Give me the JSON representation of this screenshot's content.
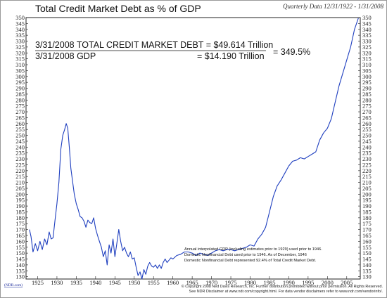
{
  "chart_data": {
    "type": "line",
    "title": "Total Credit Market Debt as % of GDP",
    "date_range": "Quarterly Data 12/31/1922 - 1/31/2008",
    "xlabel": "",
    "ylabel": "",
    "xlim": [
      1922,
      2008.5
    ],
    "ylim": [
      128,
      350
    ],
    "y_ticks": [
      130,
      135,
      140,
      145,
      150,
      155,
      160,
      165,
      170,
      175,
      180,
      185,
      190,
      195,
      200,
      205,
      210,
      215,
      220,
      225,
      230,
      235,
      240,
      245,
      250,
      255,
      260,
      265,
      270,
      275,
      280,
      285,
      290,
      295,
      300,
      305,
      310,
      315,
      320,
      325,
      330,
      335,
      340,
      345,
      350
    ],
    "x_ticks": [
      1925,
      1930,
      1935,
      1940,
      1945,
      1950,
      1955,
      1960,
      1965,
      1970,
      1975,
      1980,
      1985,
      1990,
      1995,
      2000,
      2005
    ],
    "x_tick_labels": [
      "1925",
      "1930",
      "1935",
      "1940",
      "1945",
      "1950",
      "1955",
      "1960",
      "1965",
      "1970",
      "1975",
      "1980",
      "1985",
      "1990",
      "1995",
      "2000",
      "2005"
    ],
    "grid": false,
    "legend": "none",
    "series": [
      {
        "color": "#1f3fbf",
        "points": [
          [
            1922.9,
            170
          ],
          [
            1923.3,
            164
          ],
          [
            1923.8,
            151
          ],
          [
            1924.4,
            158
          ],
          [
            1925.0,
            152
          ],
          [
            1925.6,
            160
          ],
          [
            1926.2,
            153
          ],
          [
            1926.8,
            162
          ],
          [
            1927.4,
            157
          ],
          [
            1928.0,
            168
          ],
          [
            1928.5,
            162
          ],
          [
            1929.0,
            163
          ],
          [
            1929.5,
            178
          ],
          [
            1930.0,
            192
          ],
          [
            1930.5,
            210
          ],
          [
            1931.0,
            238
          ],
          [
            1931.5,
            250
          ],
          [
            1932.0,
            255
          ],
          [
            1932.4,
            260
          ],
          [
            1932.8,
            256
          ],
          [
            1933.2,
            240
          ],
          [
            1933.6,
            222
          ],
          [
            1934.0,
            212
          ],
          [
            1934.5,
            200
          ],
          [
            1935.0,
            192
          ],
          [
            1935.5,
            187
          ],
          [
            1936.0,
            181
          ],
          [
            1936.5,
            180
          ],
          [
            1937.0,
            177
          ],
          [
            1937.5,
            172
          ],
          [
            1938.0,
            178
          ],
          [
            1938.5,
            176
          ],
          [
            1939.0,
            175
          ],
          [
            1939.5,
            180
          ],
          [
            1940.0,
            171
          ],
          [
            1940.5,
            165
          ],
          [
            1941.0,
            160
          ],
          [
            1941.5,
            155
          ],
          [
            1942.0,
            147
          ],
          [
            1942.5,
            152
          ],
          [
            1943.0,
            140
          ],
          [
            1943.5,
            157
          ],
          [
            1944.0,
            150
          ],
          [
            1944.5,
            162
          ],
          [
            1945.0,
            147
          ],
          [
            1945.5,
            158
          ],
          [
            1946.0,
            170
          ],
          [
            1946.5,
            160
          ],
          [
            1947.0,
            152
          ],
          [
            1947.5,
            155
          ],
          [
            1948.0,
            150
          ],
          [
            1948.5,
            147
          ],
          [
            1949.0,
            151
          ],
          [
            1949.5,
            145
          ],
          [
            1950.0,
            146
          ],
          [
            1950.5,
            138
          ],
          [
            1951.0,
            131
          ],
          [
            1951.5,
            134
          ],
          [
            1952.0,
            128
          ],
          [
            1952.5,
            136
          ],
          [
            1953.0,
            132
          ],
          [
            1953.5,
            139
          ],
          [
            1954.0,
            142
          ],
          [
            1954.5,
            139
          ],
          [
            1955.0,
            138
          ],
          [
            1955.5,
            140
          ],
          [
            1956.0,
            137
          ],
          [
            1956.5,
            140
          ],
          [
            1957.0,
            137
          ],
          [
            1957.5,
            142
          ],
          [
            1958.0,
            145
          ],
          [
            1958.5,
            142
          ],
          [
            1959.0,
            144
          ],
          [
            1959.5,
            146
          ],
          [
            1960.0,
            145
          ],
          [
            1961.0,
            148
          ],
          [
            1962.0,
            149
          ],
          [
            1963.0,
            151
          ],
          [
            1964.0,
            151
          ],
          [
            1965.0,
            150
          ],
          [
            1966.0,
            148
          ],
          [
            1967.0,
            150
          ],
          [
            1968.0,
            149
          ],
          [
            1969.0,
            148
          ],
          [
            1970.0,
            150
          ],
          [
            1971.0,
            152
          ],
          [
            1972.0,
            153
          ],
          [
            1973.0,
            152
          ],
          [
            1974.0,
            153
          ],
          [
            1975.0,
            153
          ],
          [
            1976.0,
            152
          ],
          [
            1977.0,
            153
          ],
          [
            1978.0,
            154
          ],
          [
            1979.0,
            155
          ],
          [
            1980.0,
            157
          ],
          [
            1981.0,
            156
          ],
          [
            1982.0,
            162
          ],
          [
            1983.0,
            166
          ],
          [
            1984.0,
            172
          ],
          [
            1985.0,
            185
          ],
          [
            1986.0,
            198
          ],
          [
            1987.0,
            207
          ],
          [
            1988.0,
            212
          ],
          [
            1989.0,
            218
          ],
          [
            1990.0,
            224
          ],
          [
            1991.0,
            228
          ],
          [
            1992.0,
            229
          ],
          [
            1993.0,
            231
          ],
          [
            1994.0,
            230
          ],
          [
            1995.0,
            232
          ],
          [
            1996.0,
            234
          ],
          [
            1997.0,
            236
          ],
          [
            1998.0,
            246
          ],
          [
            1999.0,
            252
          ],
          [
            2000.0,
            256
          ],
          [
            2001.0,
            264
          ],
          [
            2002.0,
            278
          ],
          [
            2003.0,
            292
          ],
          [
            2004.0,
            303
          ],
          [
            2005.0,
            314
          ],
          [
            2006.0,
            325
          ],
          [
            2007.0,
            340
          ],
          [
            2008.0,
            349.5
          ]
        ]
      }
    ],
    "annotation": {
      "line1": "3/31/2008 TOTAL CREDIT MARKET DEBT = $49.614 Trillion",
      "line2_left": "3/31/2008 GDP",
      "line2_right": "= $14.190 Trillion",
      "ratio": "= 349.5%"
    },
    "notes": [
      "Annual interpolated GDP (including estimates prior to 1929) used prior to 1946.",
      "Domestic Nonfinancial Debt used prior to 1946. As of December, 1946",
      "Domestic Nonfinancial Debt represented 92.4% of Total Credit Market Debt."
    ]
  },
  "footer": {
    "logo": "(NDR.com)",
    "copyright": "© Copyright 2008 Ned Davis Research, Inc. Further distribution prohibited without prior permission. All Rights Reserved.",
    "disclaimer": "See NDR Disclaimer at www.ndr.com/copyright.html. For data vendor disclaimers refer to www.ndr.com/vendorinfo/."
  }
}
